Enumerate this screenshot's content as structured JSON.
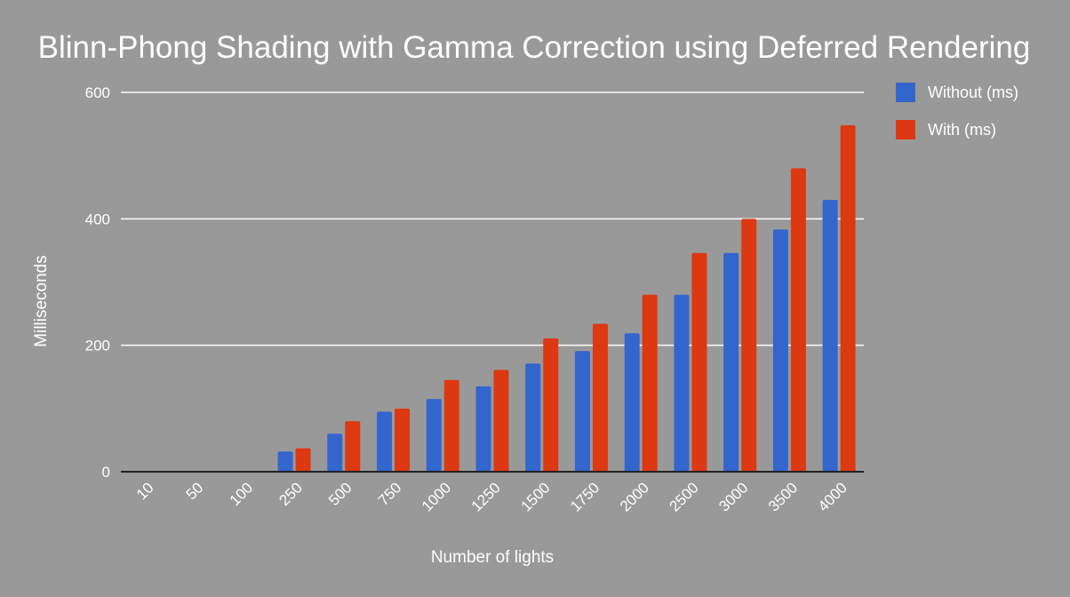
{
  "chart_data": {
    "type": "bar",
    "title": "Blinn-Phong Shading with Gamma Correction using Deferred Rendering",
    "xlabel": "Number of lights",
    "ylabel": "Milliseconds",
    "categories": [
      "10",
      "50",
      "100",
      "250",
      "500",
      "750",
      "1000",
      "1250",
      "1500",
      "1750",
      "2000",
      "2500",
      "3000",
      "3500",
      "4000"
    ],
    "series": [
      {
        "name": "Without (ms)",
        "color": "#3366cc",
        "values": [
          0,
          0,
          0,
          32,
          60,
          95,
          115,
          135,
          171,
          191,
          219,
          280,
          346,
          383,
          430
        ]
      },
      {
        "name": "With (ms)",
        "color": "#dc3912",
        "values": [
          0,
          0,
          0,
          37,
          80,
          100,
          145,
          161,
          211,
          234,
          280,
          346,
          400,
          480,
          548
        ]
      }
    ],
    "ylim": [
      0,
      600
    ],
    "yticks": [
      "0",
      "200",
      "400",
      "600"
    ],
    "grid": true,
    "legend_position": "right"
  }
}
